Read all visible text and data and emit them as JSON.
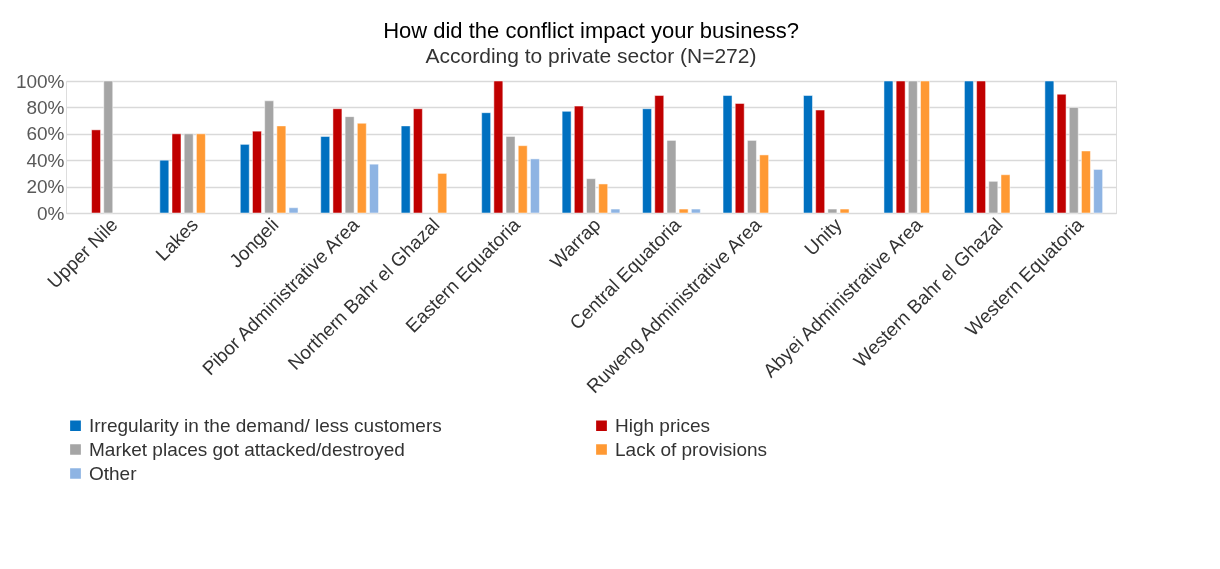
{
  "chart_data": {
    "type": "bar",
    "title": "How did the conflict impact your business?",
    "subtitle": "According to private sector (N=272)",
    "categories": [
      "Upper Nile",
      "Lakes",
      "Jongeli",
      "Pibor Administrative Area",
      "Northern Bahr el Ghazal",
      "Eastern Equatoria",
      "Warrap",
      "Central Equatoria",
      "Ruweng Administrative Area",
      "Unity",
      "Abyei Administrative Area",
      "Western Bahr el Ghazal",
      "Western Equatoria"
    ],
    "series": [
      {
        "name": "Irregularity in the demand/ less customers",
        "color": "#0070c0",
        "values": [
          null,
          40,
          52,
          58,
          66,
          76,
          77,
          79,
          89,
          89,
          100,
          100,
          100
        ]
      },
      {
        "name": "High prices",
        "color": "#c00000",
        "values": [
          63,
          60,
          62,
          79,
          79,
          100,
          81,
          89,
          83,
          78,
          100,
          100,
          90
        ]
      },
      {
        "name": "Market places got attacked/destroyed",
        "color": "#a5a5a5",
        "values": [
          100,
          60,
          85,
          73,
          null,
          58,
          26,
          55,
          55,
          3,
          100,
          24,
          80
        ]
      },
      {
        "name": "Lack of provisions",
        "color": "#ff9933",
        "values": [
          null,
          60,
          66,
          68,
          30,
          51,
          22,
          3,
          44,
          3,
          100,
          29,
          47
        ]
      },
      {
        "name": "Other",
        "color": "#8eb4e3",
        "values": [
          null,
          null,
          4,
          37,
          null,
          41,
          3,
          3,
          null,
          null,
          null,
          null,
          33
        ]
      }
    ],
    "ylim": [
      0,
      100
    ],
    "yticks": [
      {
        "value": 0,
        "label": "0%"
      },
      {
        "value": 20,
        "label": "20%"
      },
      {
        "value": 40,
        "label": "40%"
      },
      {
        "value": 60,
        "label": "60%"
      },
      {
        "value": 80,
        "label": "80%"
      },
      {
        "value": 100,
        "label": "100%"
      }
    ],
    "grid": "y",
    "legend": "bottom"
  }
}
